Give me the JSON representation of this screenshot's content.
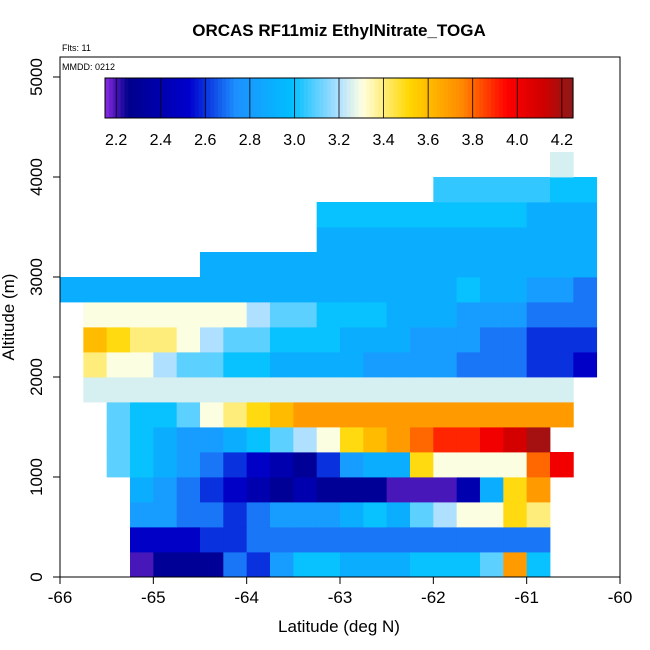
{
  "chart_data": {
    "type": "heatmap",
    "title": "ORCAS RF11miz EthylNitrate_TOGA",
    "annotations": {
      "flights": "Flts: 11",
      "date": "MMDD: 0212"
    },
    "xlabel": "Latitude (deg N)",
    "ylabel": "Altitude (m)",
    "xlim": [
      -66,
      -60
    ],
    "ylim": [
      0,
      5200
    ],
    "x_ticks": [
      -66,
      -65,
      -64,
      -63,
      -62,
      -61,
      -60
    ],
    "x_tick_labels": [
      "-66",
      "-65",
      "-64",
      "-63",
      "-62",
      "-61",
      "-60"
    ],
    "y_ticks": [
      0,
      1000,
      2000,
      3000,
      4000,
      5000
    ],
    "y_tick_labels": [
      "0",
      "1000",
      "2000",
      "3000",
      "4000",
      "5000"
    ],
    "colorbar": {
      "range": [
        2.15,
        4.25
      ],
      "ticks": [
        2.2,
        2.4,
        2.6,
        2.8,
        3.0,
        3.2,
        3.4,
        3.6,
        3.8,
        4.0,
        4.2
      ],
      "tick_labels": [
        "2.2",
        "2.4",
        "2.6",
        "2.8",
        "3.0",
        "3.2",
        "3.4",
        "3.6",
        "3.8",
        "4.0",
        "4.2"
      ]
    },
    "cell_size": {
      "lat_deg": 0.25,
      "alt_m": 250
    },
    "rows": [
      {
        "alt": 0,
        "lat_start": -65.25,
        "values": [
          2.2,
          2.3,
          2.3,
          2.3,
          2.7,
          2.6,
          2.8,
          3.0,
          3.0,
          2.9,
          2.9,
          2.9,
          3.0,
          3.0,
          3.0,
          3.1,
          3.7,
          3.0
        ]
      },
      {
        "alt": 250,
        "lat_start": -65.25,
        "values": [
          2.5,
          2.5,
          2.5,
          2.6,
          2.6,
          2.7,
          2.7,
          2.7,
          2.7,
          2.7,
          2.7,
          2.7,
          2.7,
          2.7,
          2.7,
          2.7,
          2.7,
          2.7
        ]
      },
      {
        "alt": 500,
        "lat_start": -65.25,
        "values": [
          2.8,
          2.8,
          2.7,
          2.7,
          2.6,
          2.7,
          2.8,
          2.8,
          2.8,
          2.9,
          3.0,
          2.9,
          3.1,
          3.2,
          3.3,
          3.3,
          3.5,
          3.4
        ]
      },
      {
        "alt": 750,
        "lat_start": -65.25,
        "values": [
          2.9,
          2.8,
          2.7,
          2.6,
          2.5,
          2.4,
          2.3,
          2.4,
          2.3,
          2.3,
          2.3,
          2.2,
          2.2,
          2.2,
          2.4,
          2.9,
          3.5,
          3.7
        ]
      },
      {
        "alt": 1000,
        "lat_start": -65.5,
        "values": [
          3.1,
          3.0,
          2.9,
          2.8,
          2.7,
          2.6,
          2.5,
          2.4,
          2.3,
          2.6,
          2.8,
          2.9,
          2.9,
          3.5,
          3.3,
          3.3,
          3.3,
          3.3,
          3.8,
          4.0
        ]
      },
      {
        "alt": 1250,
        "lat_start": -65.5,
        "values": [
          3.1,
          3.0,
          2.9,
          2.8,
          2.8,
          2.9,
          3.0,
          3.1,
          3.2,
          3.3,
          3.5,
          3.6,
          3.7,
          3.8,
          3.9,
          3.9,
          4.0,
          4.1,
          4.2
        ]
      },
      {
        "alt": 1500,
        "lat_start": -65.5,
        "values": [
          3.1,
          3.0,
          3.0,
          3.1,
          3.3,
          3.4,
          3.5,
          3.6,
          3.7,
          3.7,
          3.7,
          3.7,
          3.7,
          3.7,
          3.7,
          3.7,
          3.7,
          3.7,
          3.7,
          3.7
        ]
      },
      {
        "alt": 1750,
        "lat_start": -65.75,
        "values": [
          3.25,
          3.25,
          3.25,
          3.25,
          3.25,
          3.25,
          3.25,
          3.25,
          3.25,
          3.25,
          3.25,
          3.25,
          3.25,
          3.25,
          3.25,
          3.25,
          3.25,
          3.25,
          3.25,
          3.25,
          3.25
        ]
      },
      {
        "alt": 2000,
        "lat_start": -65.75,
        "values": [
          3.4,
          3.3,
          3.3,
          3.2,
          3.1,
          3.1,
          3.0,
          3.0,
          2.9,
          2.9,
          2.9,
          2.9,
          2.8,
          2.8,
          2.8,
          2.8,
          2.7,
          2.7,
          2.7,
          2.6,
          2.6,
          2.5
        ]
      },
      {
        "alt": 2250,
        "lat_start": -65.75,
        "values": [
          3.6,
          3.5,
          3.4,
          3.4,
          3.3,
          3.2,
          3.1,
          3.1,
          3.0,
          3.0,
          3.0,
          2.9,
          2.9,
          2.9,
          2.8,
          2.8,
          2.8,
          2.7,
          2.7,
          2.6,
          2.6,
          2.6
        ]
      },
      {
        "alt": 2500,
        "lat_start": -65.75,
        "values": [
          3.3,
          3.3,
          3.3,
          3.3,
          3.3,
          3.3,
          3.3,
          3.2,
          3.1,
          3.1,
          3.0,
          3.0,
          3.0,
          2.9,
          2.9,
          2.9,
          2.8,
          2.8,
          2.8,
          2.7,
          2.7,
          2.7
        ]
      },
      {
        "alt": 2750,
        "lat_start": -66.0,
        "values": [
          2.9,
          2.9,
          2.9,
          2.9,
          2.9,
          2.9,
          2.9,
          2.9,
          2.9,
          2.9,
          2.9,
          2.9,
          2.9,
          2.9,
          2.9,
          2.9,
          2.9,
          3.0,
          2.9,
          2.9,
          2.8,
          2.8,
          2.7
        ]
      },
      {
        "alt": 3000,
        "lat_start": -64.5,
        "values": [
          2.9,
          2.9,
          2.9,
          2.9,
          2.9,
          2.9,
          2.9,
          2.9,
          2.9,
          2.9,
          2.9,
          2.9,
          2.9,
          2.9,
          2.9,
          2.9,
          2.9
        ]
      },
      {
        "alt": 3250,
        "lat_start": -63.25,
        "values": [
          2.9,
          2.9,
          2.9,
          2.9,
          2.9,
          2.9,
          2.9,
          2.9,
          2.9,
          2.9,
          2.9,
          2.9
        ]
      },
      {
        "alt": 3500,
        "lat_start": -63.25,
        "values": [
          3.0,
          3.0,
          3.0,
          3.0,
          3.0,
          3.0,
          3.0,
          3.0,
          3.0,
          2.9,
          2.9,
          2.9
        ]
      },
      {
        "alt": 3750,
        "lat_start": -62.0,
        "values": [
          3.05,
          3.05,
          3.05,
          3.05,
          3.05,
          3.0,
          3.0
        ]
      },
      {
        "alt": 4000,
        "lat_start": -60.75,
        "values": [
          3.25
        ]
      }
    ]
  }
}
